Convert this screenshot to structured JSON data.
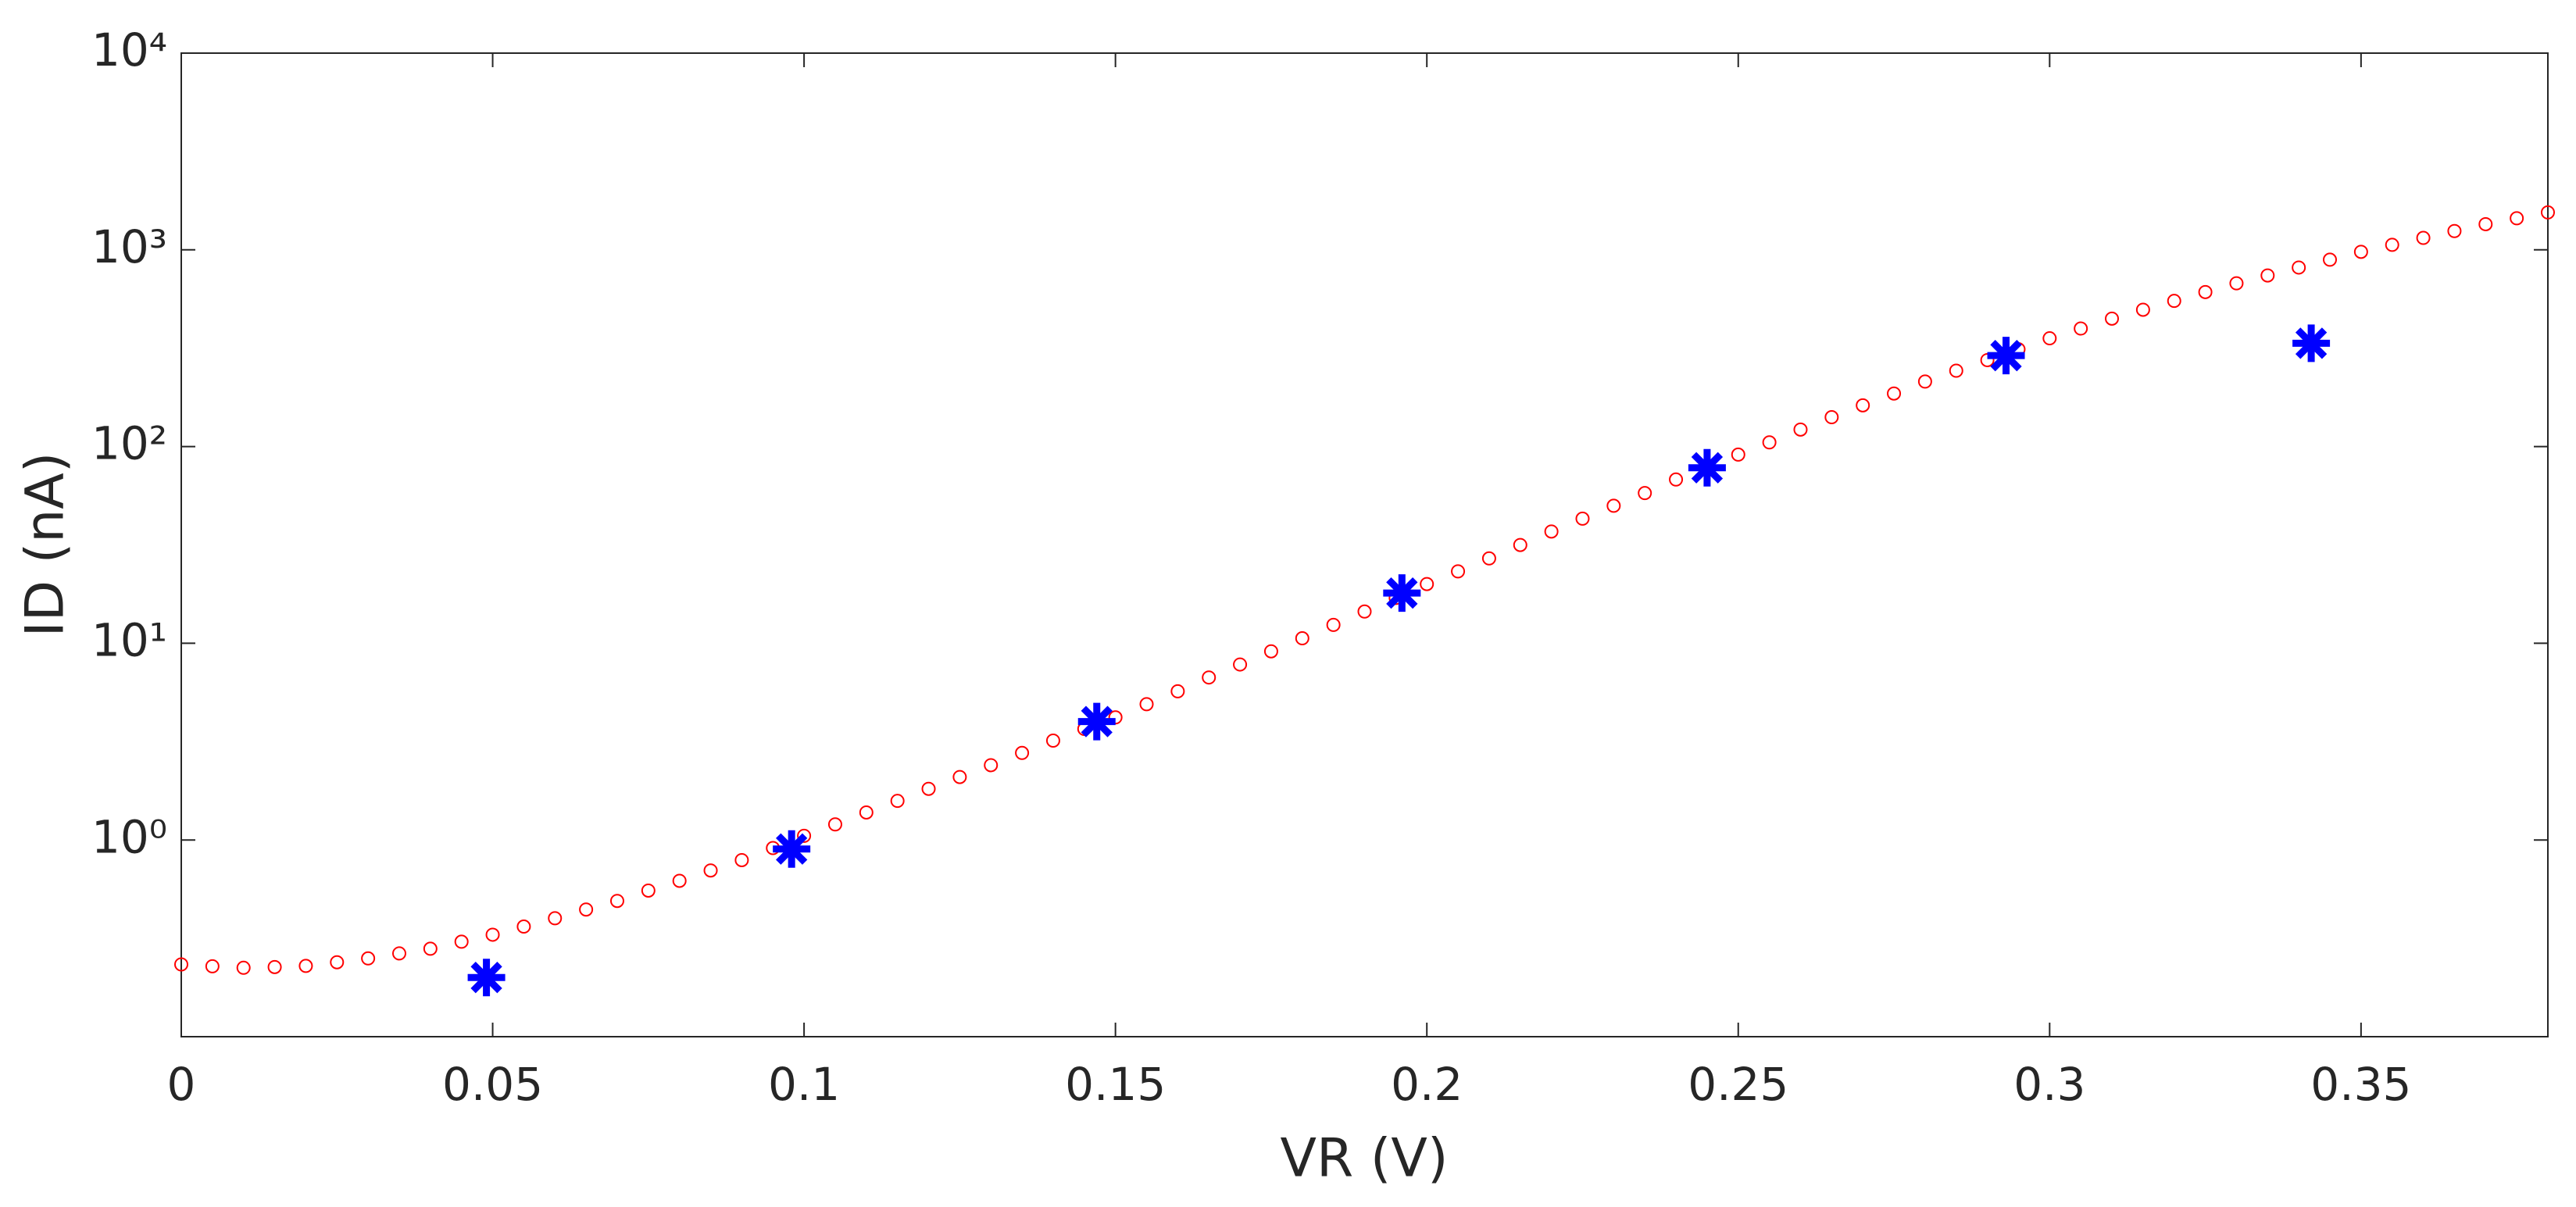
{
  "chart_data": {
    "type": "scatter",
    "xlabel": "VR (V)",
    "ylabel": "ID (nA)",
    "xlim": [
      0,
      0.38
    ],
    "ylim": [
      0.1,
      10000
    ],
    "yscale": "log",
    "xticks": [
      0,
      0.05,
      0.1,
      0.15,
      0.2,
      0.25,
      0.3,
      0.35
    ],
    "yticks": [
      {
        "value": 1,
        "label": "10⁰"
      },
      {
        "value": 10,
        "label": "10¹"
      },
      {
        "value": 100,
        "label": "10²"
      },
      {
        "value": 1000,
        "label": "10³"
      },
      {
        "value": 10000,
        "label": "10⁴"
      }
    ],
    "grid": false,
    "series": [
      {
        "color": "#ff0000",
        "marker": "circle",
        "x": [
          0,
          0.005,
          0.01,
          0.015,
          0.02,
          0.025,
          0.03,
          0.035,
          0.04,
          0.045,
          0.05,
          0.055,
          0.06,
          0.065,
          0.07,
          0.075,
          0.08,
          0.085,
          0.09,
          0.095,
          0.1,
          0.105,
          0.11,
          0.115,
          0.12,
          0.125,
          0.13,
          0.135,
          0.14,
          0.145,
          0.15,
          0.155,
          0.16,
          0.165,
          0.17,
          0.175,
          0.18,
          0.185,
          0.19,
          0.195,
          0.2,
          0.205,
          0.21,
          0.215,
          0.22,
          0.225,
          0.23,
          0.235,
          0.24,
          0.245,
          0.25,
          0.255,
          0.26,
          0.265,
          0.27,
          0.275,
          0.28,
          0.285,
          0.29,
          0.295,
          0.3,
          0.305,
          0.31,
          0.315,
          0.32,
          0.325,
          0.33,
          0.335,
          0.34,
          0.345,
          0.35,
          0.355,
          0.36,
          0.365,
          0.37,
          0.375,
          0.38
        ],
        "values": [
          0.233,
          0.228,
          0.224,
          0.226,
          0.229,
          0.239,
          0.25,
          0.265,
          0.28,
          0.304,
          0.33,
          0.363,
          0.4,
          0.443,
          0.49,
          0.553,
          0.62,
          0.7,
          0.79,
          0.91,
          1.05,
          1.2,
          1.38,
          1.58,
          1.82,
          2.09,
          2.4,
          2.77,
          3.2,
          3.67,
          4.2,
          4.9,
          5.7,
          6.7,
          7.8,
          9.1,
          10.6,
          12.4,
          14.5,
          17,
          20,
          23.2,
          27,
          31.6,
          37,
          43,
          50,
          58,
          68,
          79,
          91,
          105,
          122,
          141,
          162,
          186,
          214,
          243,
          275,
          312,
          355,
          398,
          447,
          496,
          550,
          610,
          676,
          741,
          813,
          891,
          977,
          1060,
          1150,
          1246,
          1350,
          1447,
          1550
        ]
      },
      {
        "color": "#0000ff",
        "marker": "asterisk",
        "x": [
          0.049,
          0.098,
          0.147,
          0.196,
          0.245,
          0.293,
          0.342
        ],
        "values": [
          0.2,
          0.9,
          4,
          18,
          78,
          290,
          335
        ]
      }
    ]
  }
}
